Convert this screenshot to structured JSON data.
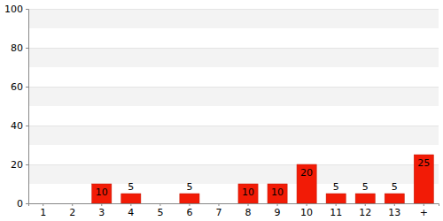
{
  "chart_data": {
    "type": "bar",
    "categories": [
      "1",
      "2",
      "3",
      "4",
      "5",
      "6",
      "7",
      "8",
      "9",
      "10",
      "11",
      "12",
      "13",
      "+"
    ],
    "values": [
      null,
      null,
      10,
      5,
      null,
      5,
      null,
      10,
      10,
      20,
      5,
      5,
      5,
      25
    ],
    "color": "#f21b06",
    "ylim": [
      0,
      100
    ],
    "yticks": [
      0,
      20,
      40,
      60,
      80,
      100
    ],
    "grid": true,
    "data_labels": true
  }
}
